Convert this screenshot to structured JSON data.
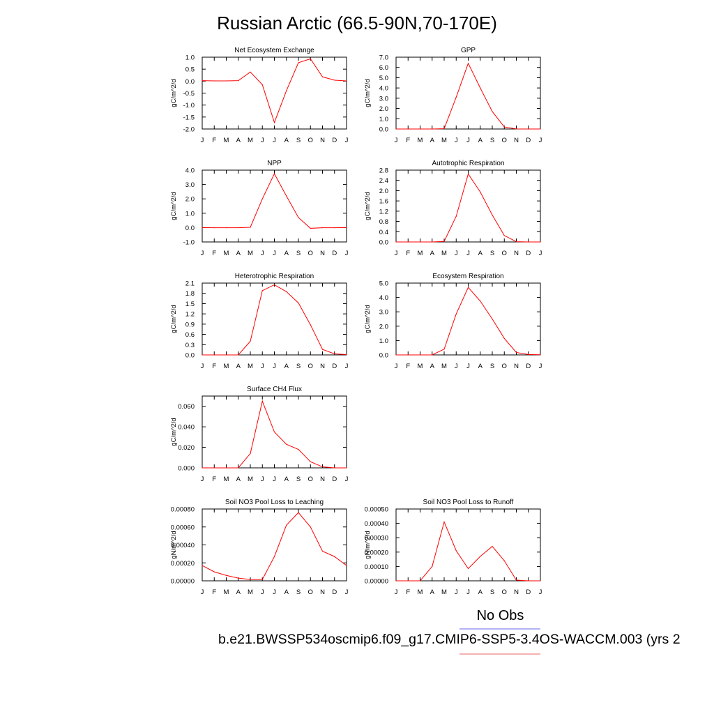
{
  "title": "Russian Arctic (66.5-90N,70-170E)",
  "legend": {
    "label": "No Obs",
    "lines": [
      {
        "color": "#6666ee"
      },
      {
        "color": "#ee6666"
      }
    ]
  },
  "caption": "b.e21.BWSSP534oscmip6.f09_g17.CMIP6-SSP5-3.4OS-WACCM.003 (yrs 2",
  "line_color": "#ff0000",
  "chart_data": [
    {
      "type": "line",
      "title": "Net Ecosystem Exchange",
      "ylabel": "gC/m^2/d",
      "x": [
        "J",
        "F",
        "M",
        "A",
        "M",
        "J",
        "J",
        "A",
        "S",
        "O",
        "N",
        "D",
        "J"
      ],
      "ylim": [
        -2.0,
        1.0
      ],
      "yticks": [
        "1.0",
        "0.5",
        "0.0",
        "-0.5",
        "-1.0",
        "-1.5",
        "-2.0"
      ],
      "series": [
        {
          "values": [
            0.02,
            0.01,
            0.01,
            0.02,
            0.38,
            -0.15,
            -1.73,
            -0.4,
            0.77,
            0.93,
            0.18,
            0.04,
            0.01
          ]
        }
      ]
    },
    {
      "type": "line",
      "title": "GPP",
      "ylabel": "gC/m^2/d",
      "x": [
        "J",
        "F",
        "M",
        "A",
        "M",
        "J",
        "J",
        "A",
        "S",
        "O",
        "N",
        "D",
        "J"
      ],
      "ylim": [
        0.0,
        7.0
      ],
      "yticks": [
        "7.0",
        "6.0",
        "5.0",
        "4.0",
        "3.0",
        "2.0",
        "1.0",
        "0.0"
      ],
      "series": [
        {
          "values": [
            0.0,
            0.0,
            0.0,
            0.0,
            0.03,
            3.1,
            6.4,
            4.0,
            1.7,
            0.2,
            0.01,
            0.0,
            0.0
          ]
        }
      ]
    },
    {
      "type": "line",
      "title": "NPP",
      "ylabel": "gC/m^2/d",
      "x": [
        "J",
        "F",
        "M",
        "A",
        "M",
        "J",
        "J",
        "A",
        "S",
        "O",
        "N",
        "D",
        "J"
      ],
      "ylim": [
        -1.0,
        4.0
      ],
      "yticks": [
        "4.0",
        "3.0",
        "2.0",
        "1.0",
        "0.0",
        "-1.0"
      ],
      "series": [
        {
          "values": [
            0.0,
            -0.01,
            -0.01,
            -0.01,
            0.02,
            2.0,
            3.75,
            2.2,
            0.7,
            -0.05,
            -0.01,
            -0.01,
            0.0
          ]
        }
      ]
    },
    {
      "type": "line",
      "title": "Autotrophic Respiration",
      "ylabel": "gC/m^2/d",
      "x": [
        "J",
        "F",
        "M",
        "A",
        "M",
        "J",
        "J",
        "A",
        "S",
        "O",
        "N",
        "D",
        "J"
      ],
      "ylim": [
        0.0,
        2.8
      ],
      "yticks": [
        "2.8",
        "2.4",
        "2.0",
        "1.6",
        "1.2",
        "0.8",
        "0.4",
        "0.0"
      ],
      "series": [
        {
          "values": [
            0.0,
            0.0,
            0.0,
            0.0,
            0.02,
            1.0,
            2.65,
            1.95,
            1.05,
            0.25,
            0.01,
            0.0,
            0.0
          ]
        }
      ]
    },
    {
      "type": "line",
      "title": "Heterotrophic Respiration",
      "ylabel": "gC/m^2/d",
      "x": [
        "J",
        "F",
        "M",
        "A",
        "M",
        "J",
        "J",
        "A",
        "S",
        "O",
        "N",
        "D",
        "J"
      ],
      "ylim": [
        0.0,
        2.1
      ],
      "yticks": [
        "2.1",
        "1.8",
        "1.5",
        "1.2",
        "0.9",
        "0.6",
        "0.3",
        "0.0"
      ],
      "series": [
        {
          "values": [
            0.0,
            0.0,
            0.0,
            0.0,
            0.4,
            1.88,
            2.05,
            1.85,
            1.52,
            0.88,
            0.16,
            0.03,
            0.01
          ]
        }
      ]
    },
    {
      "type": "line",
      "title": "Ecosystem Respiration",
      "ylabel": "gC/m^2/d",
      "x": [
        "J",
        "F",
        "M",
        "A",
        "M",
        "J",
        "J",
        "A",
        "S",
        "O",
        "N",
        "D",
        "J"
      ],
      "ylim": [
        0.0,
        5.0
      ],
      "yticks": [
        "5.0",
        "4.0",
        "3.0",
        "2.0",
        "1.0",
        "0.0"
      ],
      "series": [
        {
          "values": [
            0.0,
            0.0,
            0.0,
            0.0,
            0.4,
            2.85,
            4.7,
            3.75,
            2.5,
            1.15,
            0.17,
            0.03,
            0.01
          ]
        }
      ]
    },
    {
      "type": "line",
      "title": "Surface CH4 Flux",
      "ylabel": "gC/m^2/d",
      "x": [
        "J",
        "F",
        "M",
        "A",
        "M",
        "J",
        "J",
        "A",
        "S",
        "O",
        "N",
        "D",
        "J"
      ],
      "ylim": [
        0.0,
        0.07
      ],
      "yticks": [
        "0.060",
        "0.040",
        "0.020",
        "0.000"
      ],
      "ytick_values": [
        0.06,
        0.04,
        0.02,
        0.0
      ],
      "series": [
        {
          "values": [
            0.0,
            0.0,
            0.0,
            0.0,
            0.014,
            0.065,
            0.035,
            0.023,
            0.018,
            0.006,
            0.001,
            0.0,
            0.0
          ]
        }
      ]
    },
    {
      "type": "line",
      "title": "Soil NO3 Pool Loss to Leaching",
      "ylabel": "gN/m^2/d",
      "x": [
        "J",
        "F",
        "M",
        "A",
        "M",
        "J",
        "J",
        "A",
        "S",
        "O",
        "N",
        "D",
        "J"
      ],
      "ylim": [
        0.0,
        0.0008
      ],
      "yticks": [
        "0.00080",
        "0.00060",
        "0.00040",
        "0.00020",
        "0.00000"
      ],
      "series": [
        {
          "values": [
            0.00017,
            0.0001,
            6e-05,
            3e-05,
            1.5e-05,
            1.5e-05,
            0.00027,
            0.00062,
            0.00076,
            0.0006,
            0.00033,
            0.00027,
            0.00017
          ]
        }
      ]
    },
    {
      "type": "line",
      "title": "Soil NO3 Pool Loss to Runoff",
      "ylabel": "gN/m^2/d",
      "x": [
        "J",
        "F",
        "M",
        "A",
        "M",
        "J",
        "J",
        "A",
        "S",
        "O",
        "N",
        "D",
        "J"
      ],
      "ylim": [
        0.0,
        0.0005
      ],
      "yticks": [
        "0.00050",
        "0.00040",
        "0.00030",
        "0.00020",
        "0.00010",
        "0.00000"
      ],
      "series": [
        {
          "values": [
            0.0,
            0.0,
            0.0,
            0.0001,
            0.00041,
            0.00021,
            8.5e-05,
            0.00017,
            0.00024,
            0.00014,
            5e-06,
            0.0,
            0.0
          ]
        }
      ]
    }
  ]
}
